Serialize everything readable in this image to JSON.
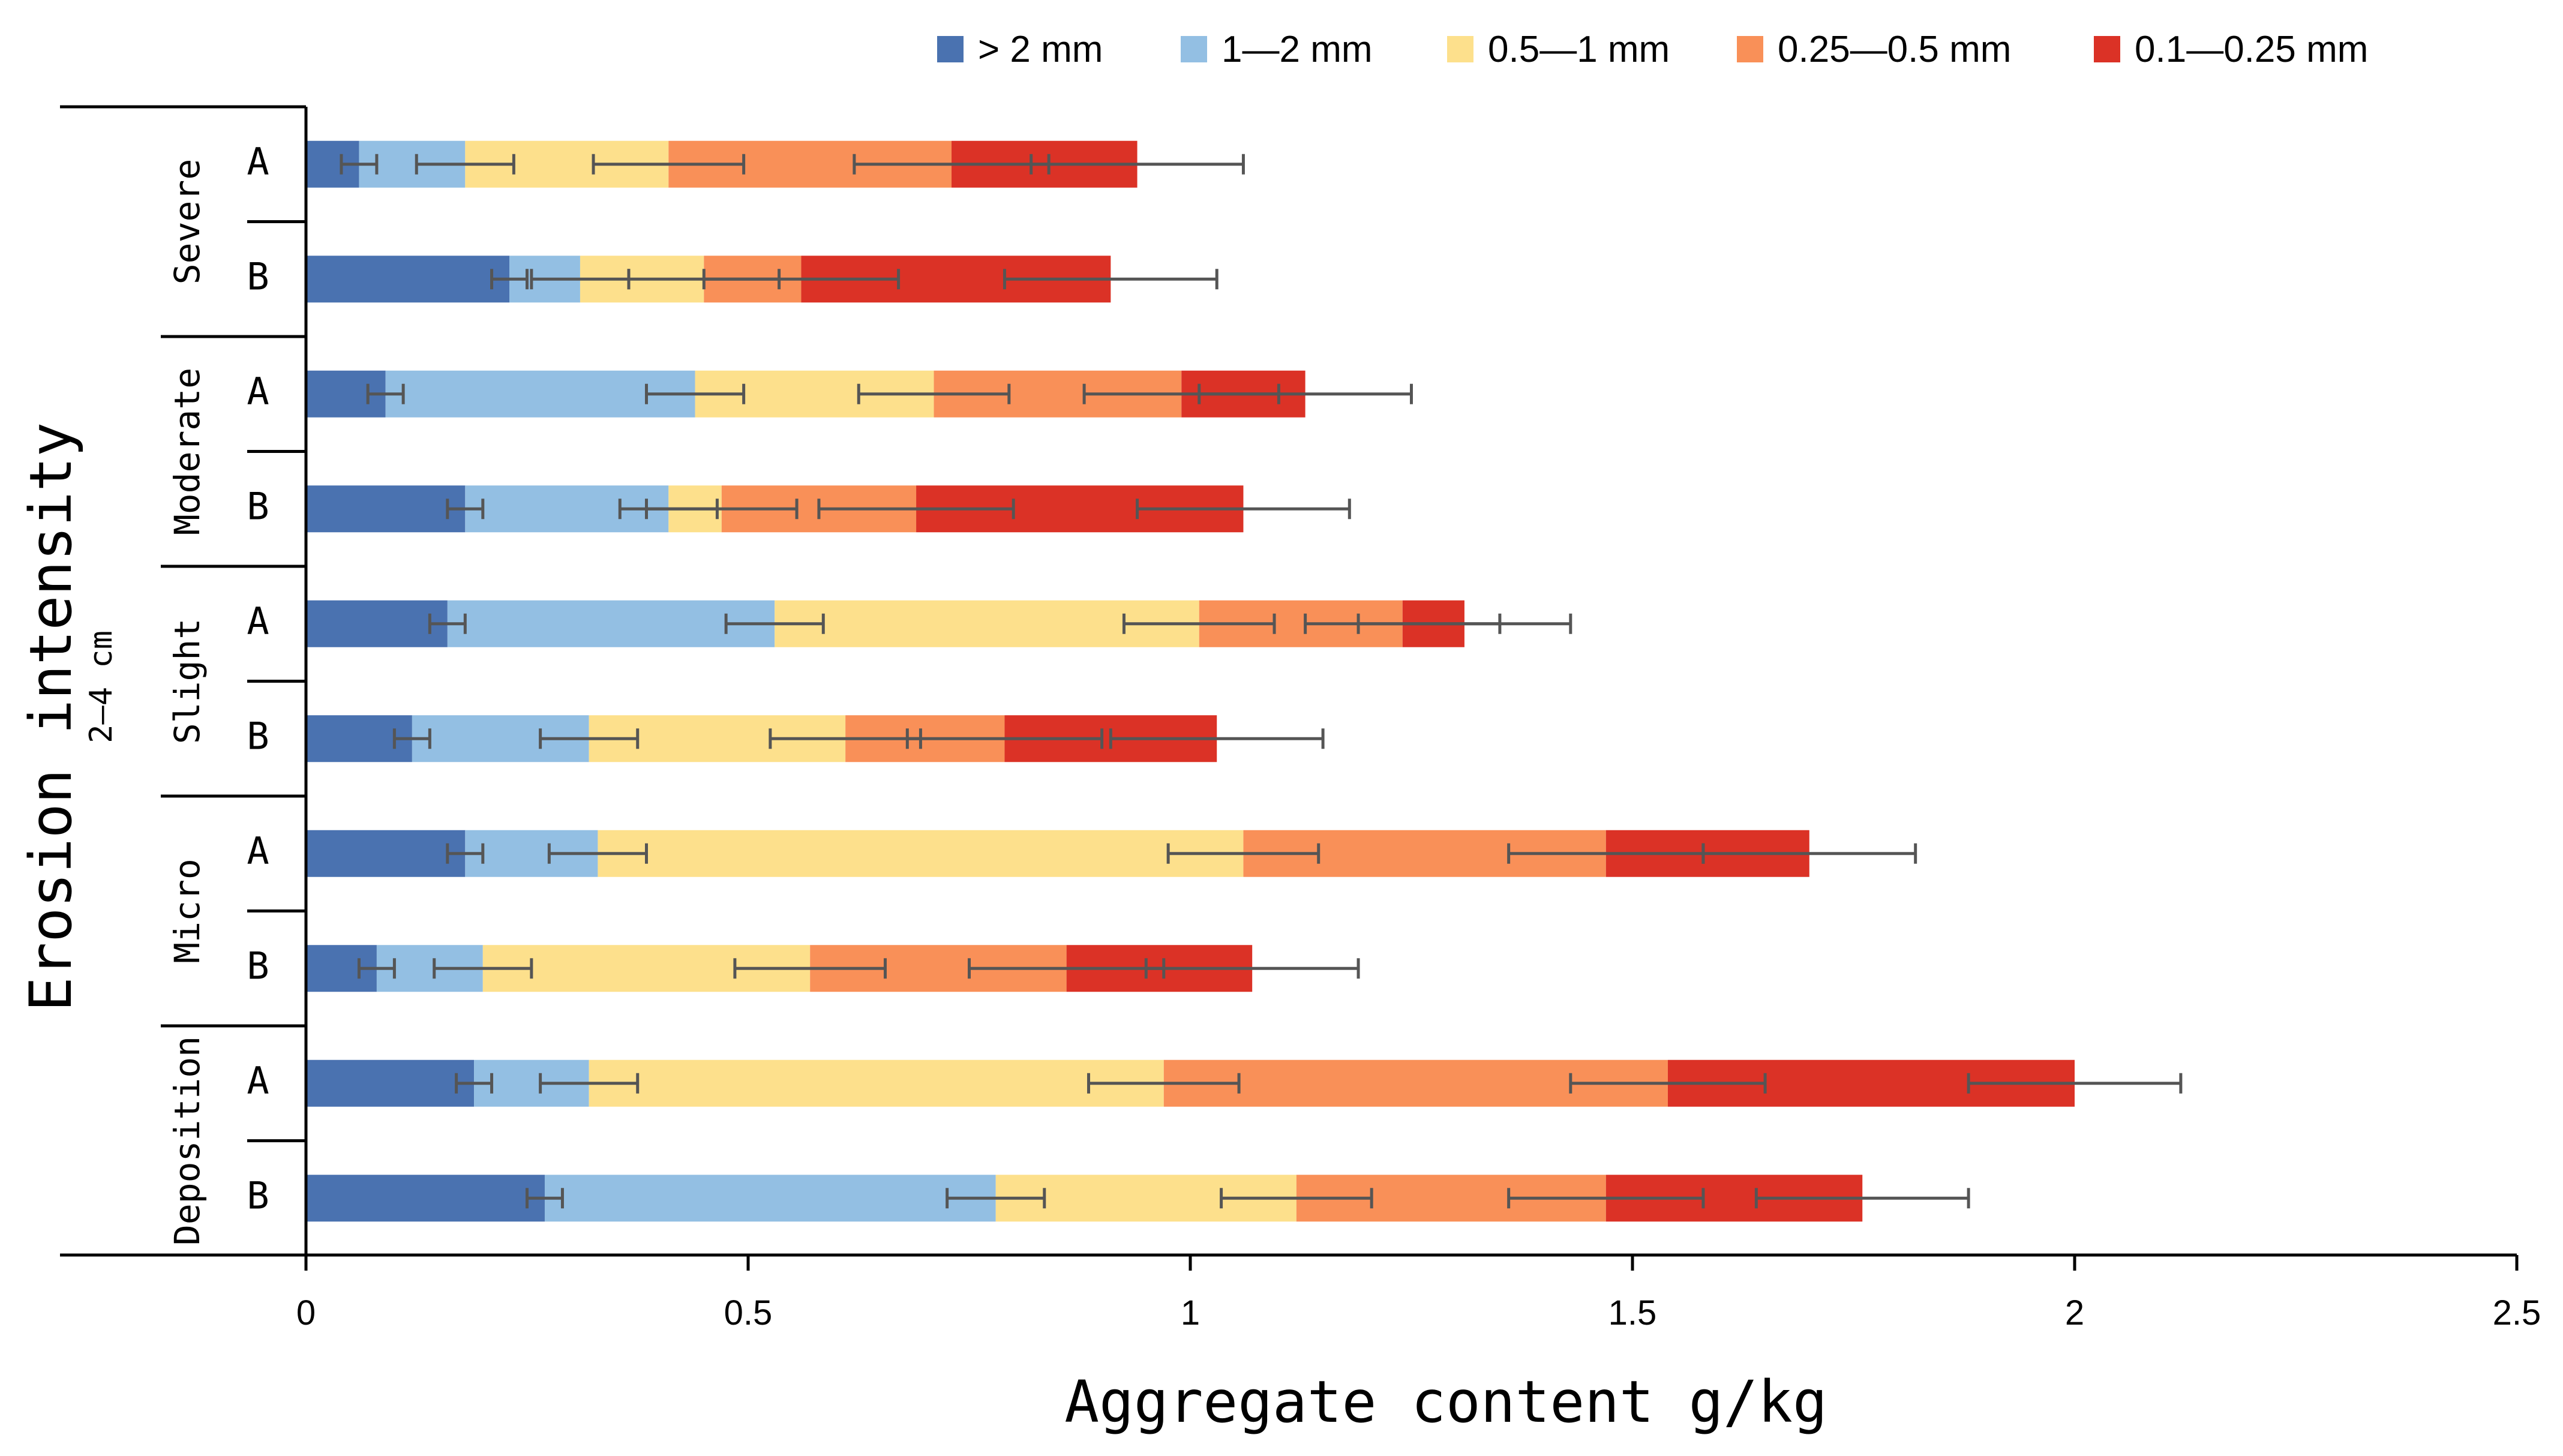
{
  "chart_data": {
    "type": "bar",
    "orientation": "horizontal",
    "stacked": true,
    "xlabel": "Aggregate content g/kg",
    "ylabel": "Erosion intensity",
    "ylabel_sub": "2—4 cm",
    "xlim": [
      0,
      2.5
    ],
    "xticks": [
      "0",
      "0.5",
      "1",
      "1.5",
      "2",
      "2.5"
    ],
    "legend_position": "top",
    "groups": [
      "Severe",
      "Moderate",
      "Slight",
      "Micro",
      "Deposition"
    ],
    "subgroups": [
      "A",
      "B"
    ],
    "categories": [
      "Severe A",
      "Severe B",
      "Moderate A",
      "Moderate B",
      "Slight A",
      "Slight B",
      "Micro A",
      "Micro B",
      "Deposition A",
      "Deposition B"
    ],
    "series": [
      {
        "name": "> 2 mm",
        "color": "#4a72b0",
        "values": [
          0.06,
          0.23,
          0.09,
          0.18,
          0.16,
          0.12,
          0.18,
          0.08,
          0.19,
          0.27
        ],
        "errors": [
          0.02,
          0.02,
          0.02,
          0.02,
          0.02,
          0.02,
          0.02,
          0.02,
          0.02,
          0.02
        ]
      },
      {
        "name": "1—2 mm",
        "color": "#93bfe3",
        "values": [
          0.12,
          0.08,
          0.35,
          0.23,
          0.37,
          0.2,
          0.15,
          0.12,
          0.13,
          0.51
        ],
        "errors": [
          0.055,
          0.055,
          0.055,
          0.055,
          0.055,
          0.055,
          0.055,
          0.055,
          0.055,
          0.055
        ]
      },
      {
        "name": "0.5—1 mm",
        "color": "#fde08c",
        "values": [
          0.23,
          0.14,
          0.27,
          0.06,
          0.48,
          0.29,
          0.73,
          0.37,
          0.65,
          0.34
        ],
        "errors": [
          0.085,
          0.085,
          0.085,
          0.085,
          0.085,
          0.085,
          0.085,
          0.085,
          0.085,
          0.085
        ]
      },
      {
        "name": "0.25—0.5 mm",
        "color": "#f99058",
        "values": [
          0.32,
          0.11,
          0.28,
          0.22,
          0.23,
          0.18,
          0.41,
          0.29,
          0.57,
          0.35
        ],
        "errors": [
          0.11,
          0.11,
          0.11,
          0.11,
          0.11,
          0.11,
          0.11,
          0.11,
          0.11,
          0.11
        ]
      },
      {
        "name": "0.1—0.25 mm",
        "color": "#db3226",
        "values": [
          0.21,
          0.35,
          0.14,
          0.37,
          0.07,
          0.24,
          0.23,
          0.21,
          0.46,
          0.29
        ],
        "errors": [
          0.12,
          0.12,
          0.12,
          0.12,
          0.12,
          0.12,
          0.12,
          0.12,
          0.12,
          0.12
        ]
      }
    ]
  }
}
